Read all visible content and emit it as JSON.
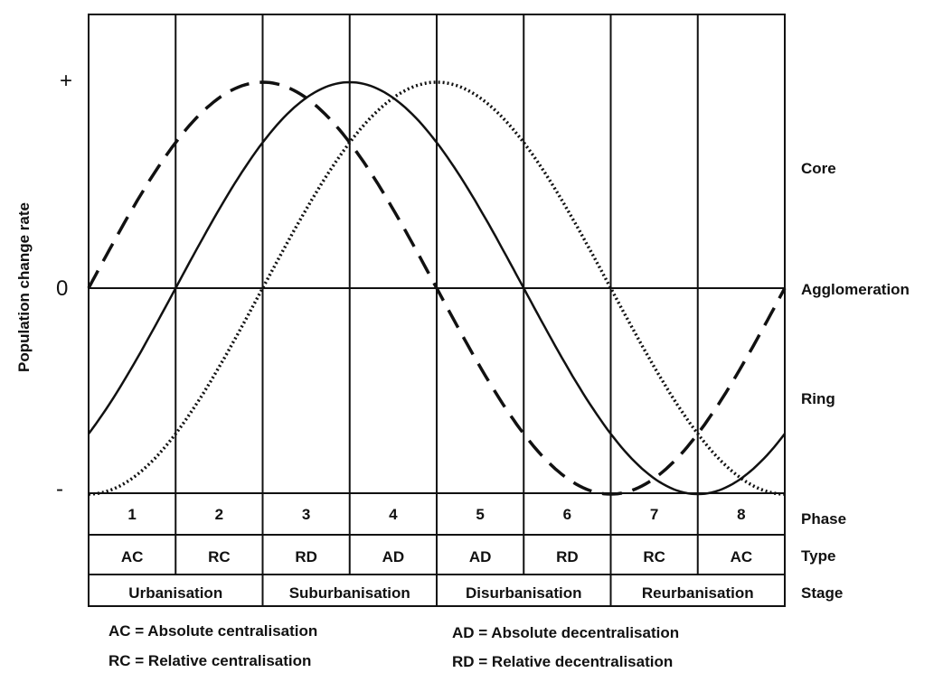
{
  "y_axis": {
    "label": "Population change rate",
    "tick_plus": "+",
    "tick_zero": "0",
    "tick_minus": "-"
  },
  "curves": [
    {
      "name": "Core",
      "style": "dashed",
      "phase_peak": 2
    },
    {
      "name": "Agglomeration",
      "style": "solid",
      "phase_peak": 3
    },
    {
      "name": "Ring",
      "style": "dotted",
      "phase_peak": 4
    }
  ],
  "row_labels": {
    "phase": "Phase",
    "type": "Type",
    "stage": "Stage"
  },
  "phases": [
    "1",
    "2",
    "3",
    "4",
    "5",
    "6",
    "7",
    "8"
  ],
  "types": [
    "AC",
    "RC",
    "RD",
    "AD",
    "AD",
    "RD",
    "RC",
    "AC"
  ],
  "stages": [
    "Urbanisation",
    "Suburbanisation",
    "Disurbanisation",
    "Reurbanisation"
  ],
  "legend": {
    "ac": "AC = Absolute centralisation",
    "rc": "RC = Relative centralisation",
    "ad": "AD = Absolute decentralisation",
    "rd": "RD = Relative decentralisation"
  },
  "colors": {
    "line": "#111111",
    "background": "#ffffff"
  }
}
